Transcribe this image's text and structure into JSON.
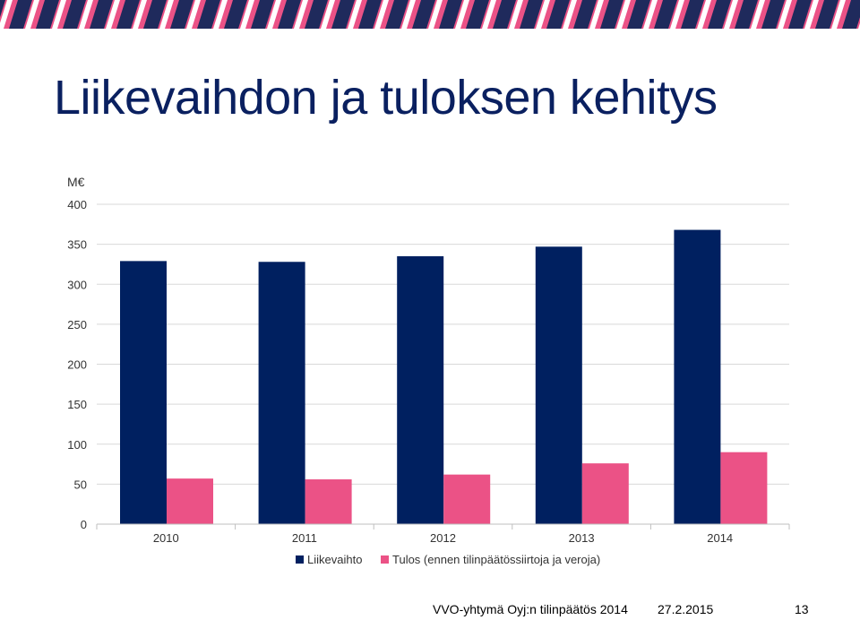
{
  "slide": {
    "title": "Liikevaihdon ja tuloksen kehitys"
  },
  "colors": {
    "navy": "#002060",
    "pink": "#eb5286",
    "banner_bg": "#eb5286",
    "banner_stripe": "#1f2a5c"
  },
  "chart_data": {
    "type": "bar",
    "title": "",
    "unit_label": "M€",
    "xlabel": "",
    "ylabel": "M€",
    "categories": [
      "2010",
      "2011",
      "2012",
      "2013",
      "2014"
    ],
    "series": [
      {
        "name": "Liikevaihto",
        "color": "#002060",
        "values": [
          329,
          328,
          335,
          347,
          368
        ]
      },
      {
        "name": "Tulos (ennen tilinpäätössiirtoja ja veroja)",
        "color": "#eb5286",
        "values": [
          57,
          56,
          62,
          76,
          90
        ]
      }
    ],
    "ylim": [
      0,
      400
    ],
    "yticks": [
      0,
      50,
      100,
      150,
      200,
      250,
      300,
      350,
      400
    ],
    "grid": true,
    "legend": "bottom"
  },
  "footer": {
    "org": "VVO-yhtymä Oyj:n tilinpäätös 2014",
    "date": "27.2.2015",
    "page": "13"
  }
}
